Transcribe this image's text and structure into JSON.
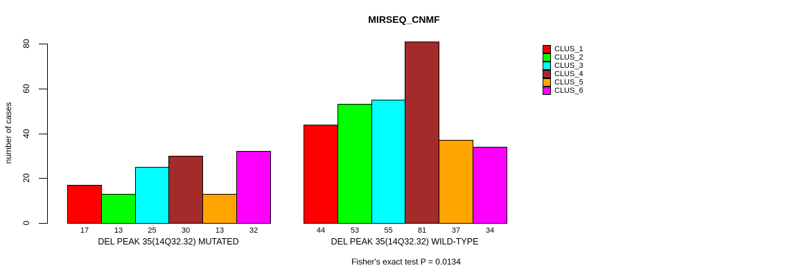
{
  "chart_data": {
    "type": "bar",
    "title": "MIRSEQ_CNMF",
    "xlabel": "",
    "ylabel": "number of cases",
    "ylim": [
      0,
      85
    ],
    "yticks": [
      0,
      20,
      40,
      60,
      80
    ],
    "grid": false,
    "legend_position": "right",
    "bar_value_labels": true,
    "categories": [
      "DEL PEAK 35(14Q32.32) MUTATED",
      "DEL PEAK 35(14Q32.32) WILD-TYPE"
    ],
    "series": [
      {
        "name": "CLUS_1",
        "color": "#FF0000",
        "values": [
          17,
          44
        ]
      },
      {
        "name": "CLUS_2",
        "color": "#00FF00",
        "values": [
          13,
          53
        ]
      },
      {
        "name": "CLUS_3",
        "color": "#00FFFF",
        "values": [
          25,
          55
        ]
      },
      {
        "name": "CLUS_4",
        "color": "#A52A2A",
        "values": [
          30,
          81
        ]
      },
      {
        "name": "CLUS_5",
        "color": "#FFA500",
        "values": [
          13,
          37
        ]
      },
      {
        "name": "CLUS_6",
        "color": "#FF00FF",
        "values": [
          32,
          34
        ]
      }
    ],
    "annotation": "Fisher's exact test P = 0.0134"
  }
}
